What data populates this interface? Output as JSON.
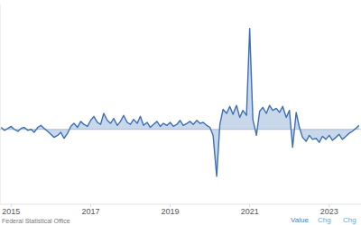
{
  "chart_data": {
    "type": "line",
    "x": [
      2014.75,
      2014.83,
      2014.92,
      2015,
      2015.08,
      2015.17,
      2015.25,
      2015.33,
      2015.42,
      2015.5,
      2015.58,
      2015.67,
      2015.75,
      2015.83,
      2015.92,
      2016,
      2016.08,
      2016.17,
      2016.25,
      2016.33,
      2016.42,
      2016.5,
      2016.58,
      2016.67,
      2016.75,
      2016.83,
      2016.92,
      2017,
      2017.08,
      2017.17,
      2017.25,
      2017.33,
      2017.42,
      2017.5,
      2017.58,
      2017.67,
      2017.75,
      2017.83,
      2017.92,
      2018,
      2018.08,
      2018.17,
      2018.25,
      2018.33,
      2018.42,
      2018.5,
      2018.58,
      2018.67,
      2018.75,
      2018.83,
      2018.92,
      2019,
      2019.08,
      2019.17,
      2019.25,
      2019.33,
      2019.42,
      2019.5,
      2019.58,
      2019.67,
      2019.75,
      2019.83,
      2019.92,
      2020,
      2020.08,
      2020.17,
      2020.25,
      2020.33,
      2020.42,
      2020.5,
      2020.58,
      2020.67,
      2020.75,
      2020.83,
      2020.92,
      2021,
      2021.08,
      2021.17,
      2021.25,
      2021.33,
      2021.42,
      2021.5,
      2021.58,
      2021.67,
      2021.75,
      2021.83,
      2021.92,
      2022,
      2022.08,
      2022.17,
      2022.25,
      2022.33,
      2022.42,
      2022.5,
      2022.58,
      2022.67,
      2022.75,
      2022.83,
      2022.92,
      2023,
      2023.08,
      2023.17,
      2023.25,
      2023.33,
      2023.42,
      2023.5,
      2023.58,
      2023.67,
      2023.75
    ],
    "values": [
      0.2,
      -0.1,
      0.1,
      0.3,
      0.0,
      -0.2,
      0.1,
      0.2,
      -0.1,
      0.0,
      -0.3,
      0.2,
      0.4,
      0.1,
      -0.2,
      -0.5,
      -0.8,
      -0.6,
      -0.3,
      -0.9,
      -0.4,
      0.3,
      0.6,
      0.2,
      0.8,
      0.5,
      0.3,
      0.9,
      1.3,
      0.7,
      0.5,
      1.6,
      0.9,
      0.6,
      1.1,
      0.4,
      0.8,
      1.4,
      0.7,
      0.5,
      1.0,
      0.6,
      1.3,
      0.4,
      0.7,
      0.2,
      0.5,
      0.8,
      0.3,
      0.6,
      0.4,
      0.7,
      0.3,
      0.5,
      0.9,
      0.4,
      0.6,
      0.8,
      0.5,
      0.9,
      0.6,
      0.7,
      0.4,
      0.2,
      -0.6,
      -4.7,
      0.5,
      2.0,
      1.6,
      2.3,
      1.5,
      2.4,
      1.2,
      1.9,
      1.4,
      10.1,
      1.0,
      -0.6,
      1.8,
      2.2,
      1.6,
      2.4,
      1.9,
      2.1,
      1.7,
      2.3,
      1.2,
      1.9,
      -1.8,
      1.7,
      0.2,
      -0.8,
      -1.2,
      -0.6,
      -1.0,
      -0.9,
      -1.3,
      -0.7,
      -1.0,
      -0.6,
      -1.1,
      -0.8,
      -0.5,
      -1.0,
      -0.7,
      -0.4,
      -0.2,
      0.1,
      0.4
    ],
    "color": "#3d6fb4",
    "xlim": [
      2014.72,
      2023.8
    ],
    "xticks": [
      2015,
      2017,
      2019,
      2021,
      2023
    ],
    "ylim": [
      -7.5,
      12.5
    ],
    "grid": false,
    "tick_labels": "x",
    "source": "Federal Statistical Office",
    "tabs": [
      "Value",
      "Chg",
      "Chg"
    ]
  }
}
